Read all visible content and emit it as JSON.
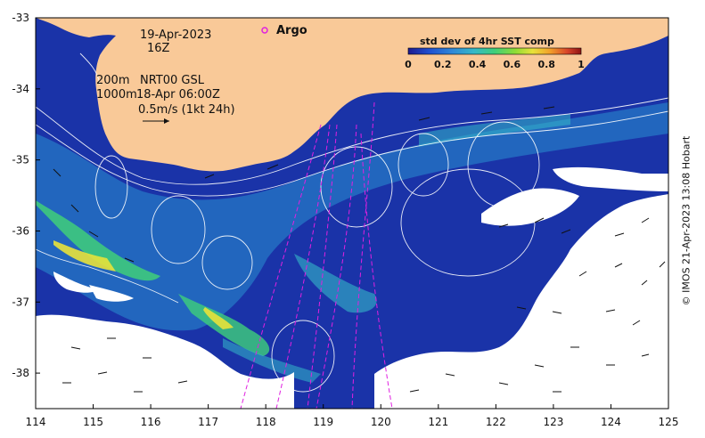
{
  "map": {
    "date_line": "19-Apr-2023",
    "hour_line": "16Z",
    "depth_line_1": "200m",
    "model_line": "NRT00 GSL",
    "depth_line_2": "1000m",
    "analysis_time": "18-Apr 06:00Z",
    "current_scale": "0.5m/s (1kt 24h)",
    "argo_label": "Argo"
  },
  "colorbar": {
    "title": "std dev of 4hr SST comp",
    "ticks": [
      "0",
      "0.2",
      "0.4",
      "0.6",
      "0.8",
      "1"
    ],
    "colors": [
      "#1e1a8e",
      "#1f4fd0",
      "#2f86d8",
      "#35b8c8",
      "#3fcf7a",
      "#8fdc35",
      "#e8e23a",
      "#f2a02a",
      "#d8452a",
      "#8e1414"
    ]
  },
  "axes": {
    "x_ticks": [
      "114",
      "115",
      "116",
      "117",
      "118",
      "119",
      "120",
      "121",
      "122",
      "123",
      "124",
      "125"
    ],
    "y_ticks": [
      "-33",
      "-34",
      "-35",
      "-36",
      "-37",
      "-38"
    ],
    "x_range": [
      114,
      125
    ],
    "y_range": [
      -38.5,
      -33
    ]
  },
  "credit": "© IMOS 21-Apr-2023 13:08 Hobart",
  "colors": {
    "land": "#f9c998",
    "ocean_deep": "#1a33a8",
    "contour": "#ffffff",
    "track": "#e020e0",
    "no_data": "#ffffff"
  }
}
